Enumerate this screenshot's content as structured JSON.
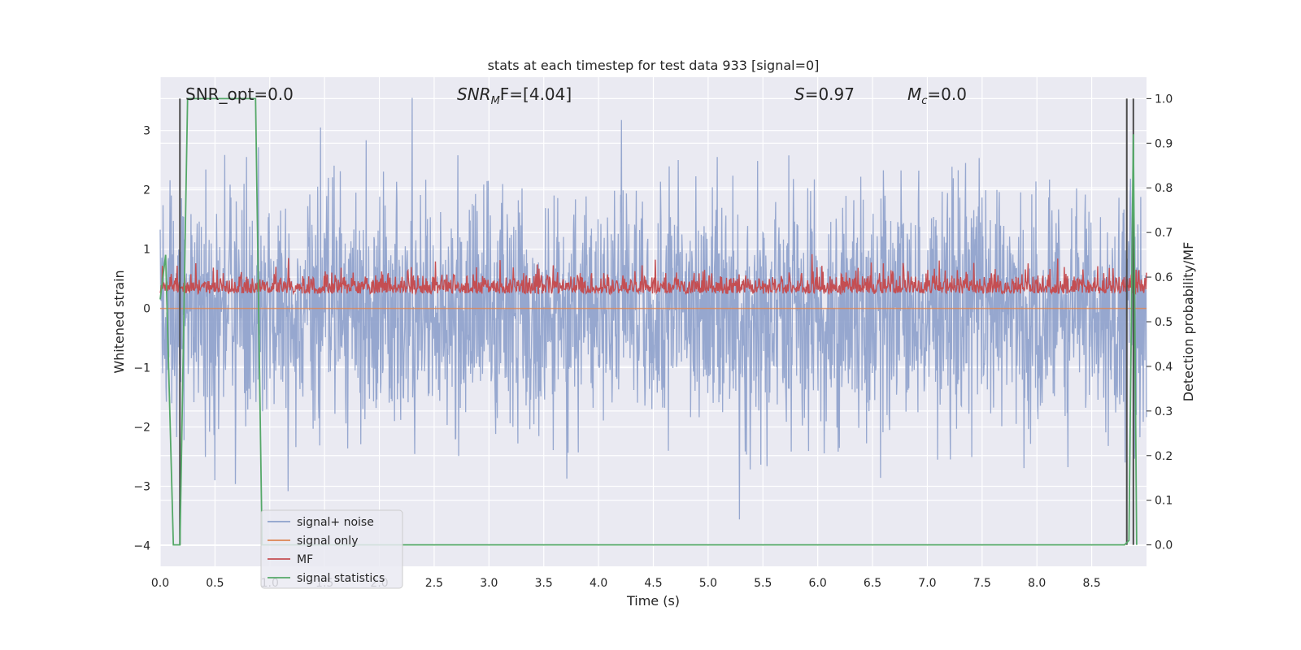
{
  "chart_data": {
    "type": "line",
    "title": "stats at each timestep for test data 933 [signal=0]",
    "xlabel": "Time (s)",
    "ylabel": "Whitened strain",
    "y2label": "Detection probability/MF",
    "xlim": [
      0.0,
      9.0
    ],
    "ylim": [
      -4.35,
      3.9
    ],
    "y2lim": [
      -0.048,
      1.048
    ],
    "grid": true,
    "legend_position": "lower-left",
    "xticks": [
      "0.0",
      "0.5",
      "1.0",
      "1.5",
      "2.0",
      "2.5",
      "3.0",
      "3.5",
      "4.0",
      "4.5",
      "5.0",
      "5.5",
      "6.0",
      "6.5",
      "7.0",
      "7.5",
      "8.0",
      "8.5"
    ],
    "xtick_values": [
      0.0,
      0.5,
      1.0,
      1.5,
      2.0,
      2.5,
      3.0,
      3.5,
      4.0,
      4.5,
      5.0,
      5.5,
      6.0,
      6.5,
      7.0,
      7.5,
      8.0,
      8.5
    ],
    "yticks": [
      "−4",
      "−3",
      "−2",
      "−1",
      "0",
      "1",
      "2",
      "3"
    ],
    "ytick_values": [
      -4,
      -3,
      -2,
      -1,
      0,
      1,
      2,
      3
    ],
    "y2ticks": [
      "0.0",
      "0.1",
      "0.2",
      "0.3",
      "0.4",
      "0.5",
      "0.6",
      "0.7",
      "0.8",
      "0.9",
      "1.0"
    ],
    "y2tick_values": [
      0.0,
      0.1,
      0.2,
      0.3,
      0.4,
      0.5,
      0.6,
      0.7,
      0.8,
      0.9,
      1.0
    ],
    "annotations": {
      "snr_opt": "SNR_opt=0.0",
      "snr_mf_main": "SNR",
      "snr_mf_sub": "M",
      "snr_mf_rest": "F=[4.04]",
      "s_main": "S",
      "s_rest": "=0.97",
      "mc_main": "M",
      "mc_sub": "c",
      "mc_rest": "=0.0"
    },
    "vertical_lines_x": [
      0.18,
      8.82,
      8.88
    ],
    "series": [
      {
        "name": "signal+ noise",
        "color": "#8da0cb",
        "axis": "left",
        "description_kind": "noise",
        "mean": 0.0,
        "std": 1.0,
        "range": [
          -3.7,
          3.55
        ]
      },
      {
        "name": "signal only",
        "color": "#dd8452",
        "axis": "left",
        "x": [
          0.0,
          9.0
        ],
        "y": [
          0.0,
          0.0
        ]
      },
      {
        "name": "MF",
        "color": "#c44e52",
        "axis": "right",
        "description_kind": "noise",
        "mean": 0.575,
        "range": [
          0.545,
          0.67
        ]
      },
      {
        "name": "signal statistics",
        "color": "#55a868",
        "axis": "right",
        "x": [
          0.0,
          0.05,
          0.12,
          0.18,
          0.25,
          0.87,
          0.93,
          8.8,
          8.84,
          8.88,
          8.91
        ],
        "y": [
          0.55,
          0.65,
          0.0,
          0.0,
          1.0,
          1.0,
          0.0,
          0.0,
          0.01,
          0.92,
          0.0
        ]
      }
    ],
    "colors": {
      "plot_background": "#eaeaf2",
      "grid": "#ffffff",
      "vline": "#4c4c4c"
    }
  }
}
